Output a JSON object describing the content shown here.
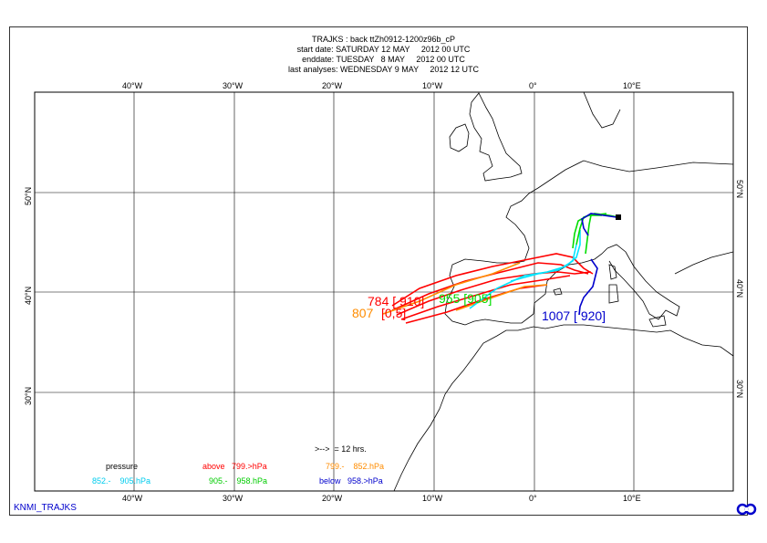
{
  "header": {
    "title": "TRAJKS : back ttZh0912-1200z96b_cP",
    "start_date": "start date: SATURDAY 12 MAY     2012 00 UTC",
    "end_date": "enddate: TUESDAY   8 MAY     2012 00 UTC",
    "last_analyses": "last analyses: WEDNESDAY 9 MAY     2012 12 UTC"
  },
  "axes": {
    "lon_labels_top": [
      "40°W",
      "30°W",
      "20°W",
      "10°W",
      "0°",
      "10°E"
    ],
    "lon_labels_bottom": [
      "40°W",
      "30°W",
      "20°W",
      "10°W",
      "0°",
      "10°E"
    ],
    "lat_labels_left": [
      "50°N",
      "40°N",
      "30°N"
    ],
    "lat_labels_right": [
      "50°N",
      "40°N",
      "30°N"
    ]
  },
  "annotations": {
    "red": "784 [ 910]",
    "green": "955 [905]",
    "orange": "807",
    "blue": "1007 [ 920]",
    "overlap": "[0,5]"
  },
  "legend": {
    "time_step": ">-->  = 12 hrs.",
    "pressure_label": "pressure",
    "above": "above   799.>hPa",
    "orange_range": "799.-    852.hPa",
    "cyan_range": "852.-    905.hPa",
    "green_range": "905.-    958.hPa",
    "below": "below   958.>hPa"
  },
  "colors": {
    "red": "#ff0000",
    "orange": "#ff8c00",
    "cyan": "#00e5ff",
    "green": "#00dd00",
    "blue": "#0000cc"
  },
  "footer": {
    "label": "KNMI_TRAJKS"
  },
  "icons": [
    "ecmwf-logo-icon"
  ]
}
